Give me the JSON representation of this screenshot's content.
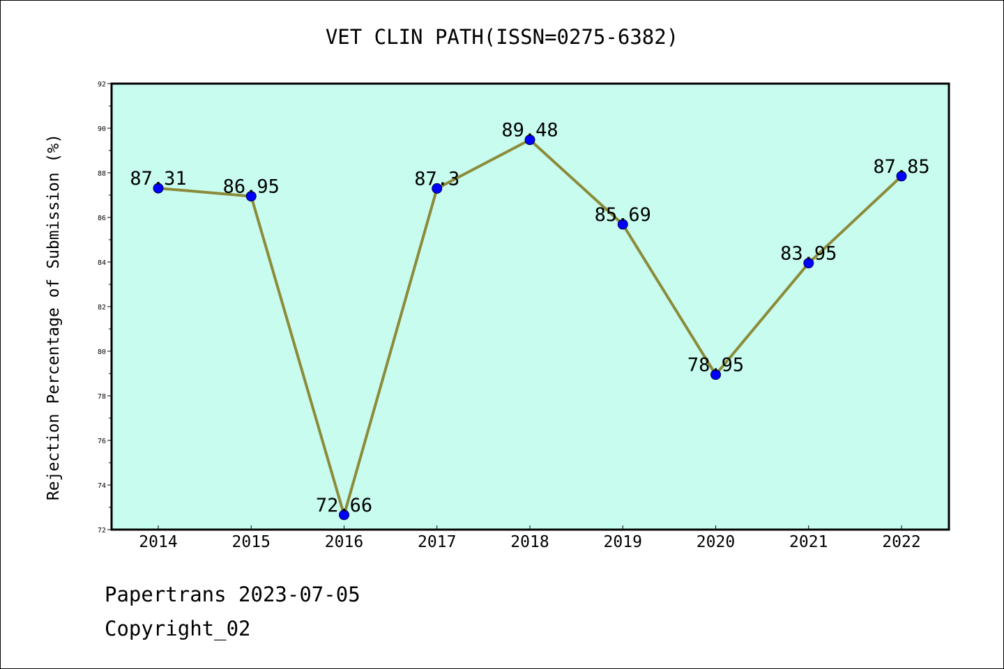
{
  "chart_data": {
    "type": "line",
    "title": "VET CLIN PATH(ISSN=0275-6382)",
    "xlabel": "",
    "ylabel": "Rejection Percentage of Submission (%)",
    "categories": [
      "2014",
      "2015",
      "2016",
      "2017",
      "2018",
      "2019",
      "2020",
      "2021",
      "2022"
    ],
    "series": [
      {
        "values": [
          87.31,
          86.95,
          72.66,
          87.3,
          89.48,
          85.69,
          78.95,
          83.95,
          87.85
        ],
        "labels": [
          "87.31",
          "86.95",
          "72.66",
          "87.3",
          "89.48",
          "85.69",
          "78.95",
          "83.95",
          "87.85"
        ]
      }
    ],
    "ylim": [
      72,
      92
    ],
    "yticks": [
      72,
      74,
      76,
      78,
      80,
      82,
      84,
      86,
      88,
      90,
      92
    ],
    "ytick_labels": [
      "72",
      "74",
      "76",
      "78",
      "80",
      "82",
      "84",
      "86",
      "88",
      "90",
      "92"
    ],
    "grid": false,
    "colors": {
      "plot_background": "#c8fcee",
      "line": "#8b8b3a",
      "marker": "#0000ff"
    }
  },
  "footer": {
    "line1": "Papertrans 2023-07-05",
    "line2": "Copyright_02"
  }
}
